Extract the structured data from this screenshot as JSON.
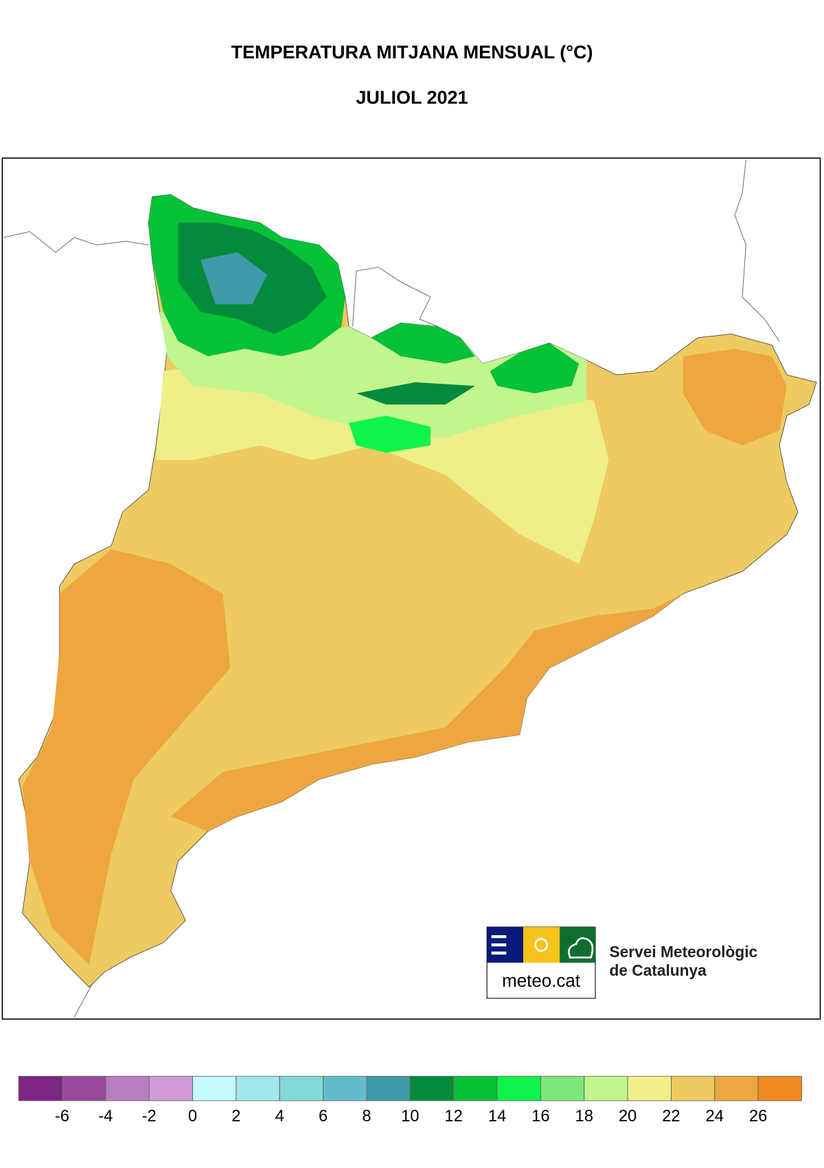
{
  "header": {
    "title": "TEMPERATURA MITJANA MENSUAL (°C)",
    "subtitle": "JULIOL 2021"
  },
  "logo": {
    "site": "meteo.cat",
    "org_line1": "Servei Meteorològic",
    "org_line2": "de Catalunya"
  },
  "legend": {
    "lim": [
      -8,
      28
    ],
    "ticks": [
      -6,
      -4,
      -2,
      0,
      2,
      4,
      6,
      8,
      10,
      12,
      14,
      16,
      18,
      20,
      22,
      24,
      26
    ],
    "colors": [
      "#7b2680",
      "#9a4a9e",
      "#b77ec0",
      "#cf9ad3",
      "#c4fbfb",
      "#a2e8ea",
      "#85d8d8",
      "#62bccc",
      "#3f9aa8",
      "#038a3c",
      "#05c236",
      "#0cf34a",
      "#7de87a",
      "#c3f58f",
      "#efef8a",
      "#edcb60",
      "#eda640",
      "#ef8a20"
    ]
  }
}
